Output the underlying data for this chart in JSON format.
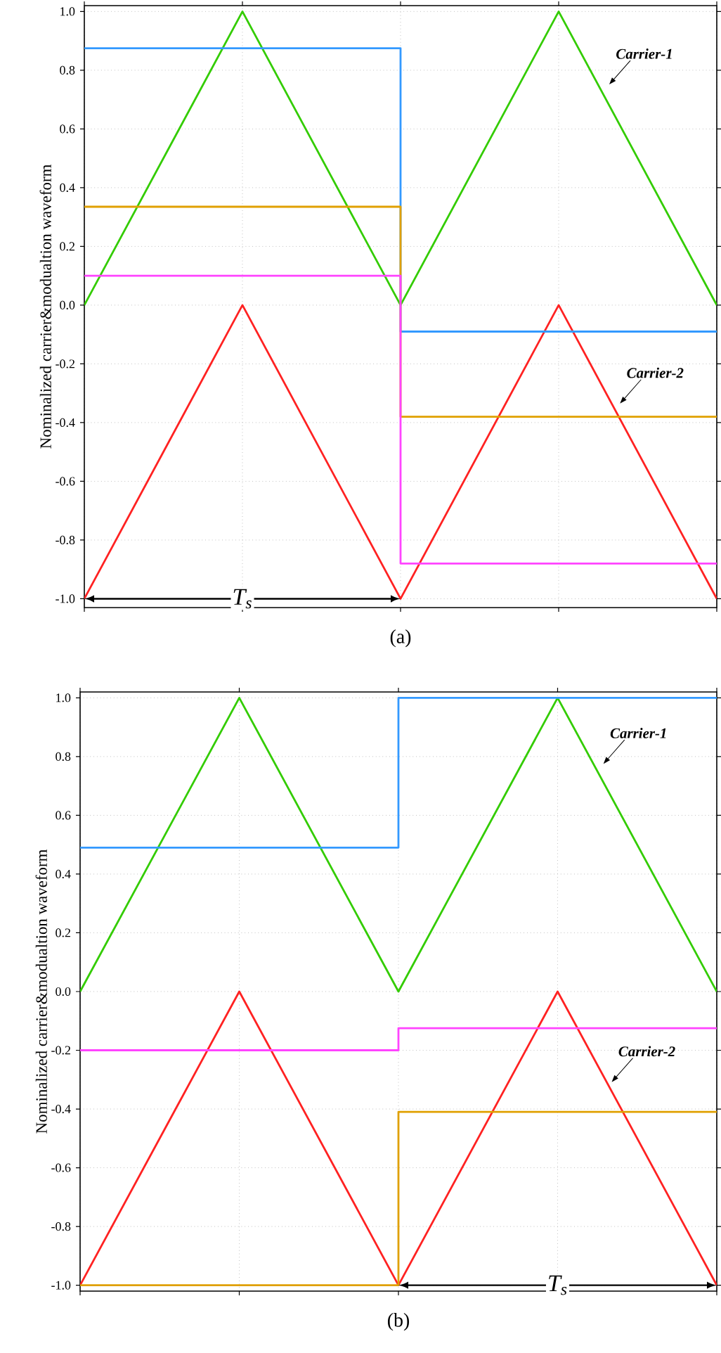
{
  "chart_data": [
    {
      "type": "line",
      "title": "(a)",
      "ylabel": "Nominalized  carrier&modualtion waveform",
      "categories": [
        null,
        null,
        null,
        null,
        null
      ],
      "ylim": [
        -1.03,
        1.02
      ],
      "yticks": [
        {
          "value": -1,
          "label": "-1.0"
        },
        -0.8,
        -0.6,
        -0.4,
        -0.2,
        {
          "value": 0,
          "label": "0.0"
        },
        0.2,
        0.4,
        0.6,
        0.8,
        {
          "value": 1,
          "label": "1.0"
        }
      ],
      "tick_labels": "y",
      "grid": true,
      "series": [
        {
          "color": "#33cc00",
          "values": [
            0,
            1,
            0,
            1,
            0
          ]
        },
        {
          "color": "#ff2222",
          "values": [
            -1,
            0,
            -1,
            0,
            -1
          ]
        },
        {
          "type": "step",
          "color": "#3399ff",
          "values": [
            0.875,
            0.875,
            -0.09,
            -0.09,
            -0.09
          ]
        },
        {
          "type": "step",
          "color": "#e0a000",
          "values": [
            0.335,
            0.335,
            -0.38,
            -0.38,
            -0.38
          ]
        },
        {
          "type": "step",
          "color": "#ff44ff",
          "values": [
            0.1,
            0.1,
            -0.88,
            -0.88,
            -0.88
          ]
        }
      ],
      "annotations": [
        "Carrier-1",
        "Carrier-2",
        "T$_{s}$"
      ]
    },
    {
      "type": "line",
      "title": "(b)",
      "ylabel": "Nominalized  carrier&modualtion waveform",
      "categories": [
        null,
        null,
        null,
        null,
        null
      ],
      "ylim": [
        -1.02,
        1.02
      ],
      "yticks": [
        {
          "value": -1,
          "label": "-1.0"
        },
        -0.8,
        -0.6,
        -0.4,
        -0.2,
        {
          "value": 0,
          "label": "0.0"
        },
        0.2,
        0.4,
        0.6,
        0.8,
        {
          "value": 1,
          "label": "1.0"
        }
      ],
      "tick_labels": "y",
      "grid": true,
      "series": [
        {
          "color": "#33cc00",
          "values": [
            0,
            1,
            0,
            1,
            0
          ]
        },
        {
          "color": "#ff2222",
          "values": [
            -1,
            0,
            -1,
            0,
            -1
          ]
        },
        {
          "type": "step",
          "color": "#3399ff",
          "values": [
            0.49,
            0.49,
            1.0,
            1.0,
            1.0
          ]
        },
        {
          "type": "step",
          "color": "#ff44ff",
          "values": [
            -0.2,
            -0.2,
            -0.125,
            -0.125,
            -0.125
          ]
        },
        {
          "type": "step",
          "color": "#e0a000",
          "values": [
            -1.0,
            -1.0,
            -0.41,
            -0.41,
            -0.41
          ]
        }
      ],
      "annotations": [
        "Carrier-1",
        "Carrier-2",
        "T$_{s}$"
      ]
    }
  ]
}
